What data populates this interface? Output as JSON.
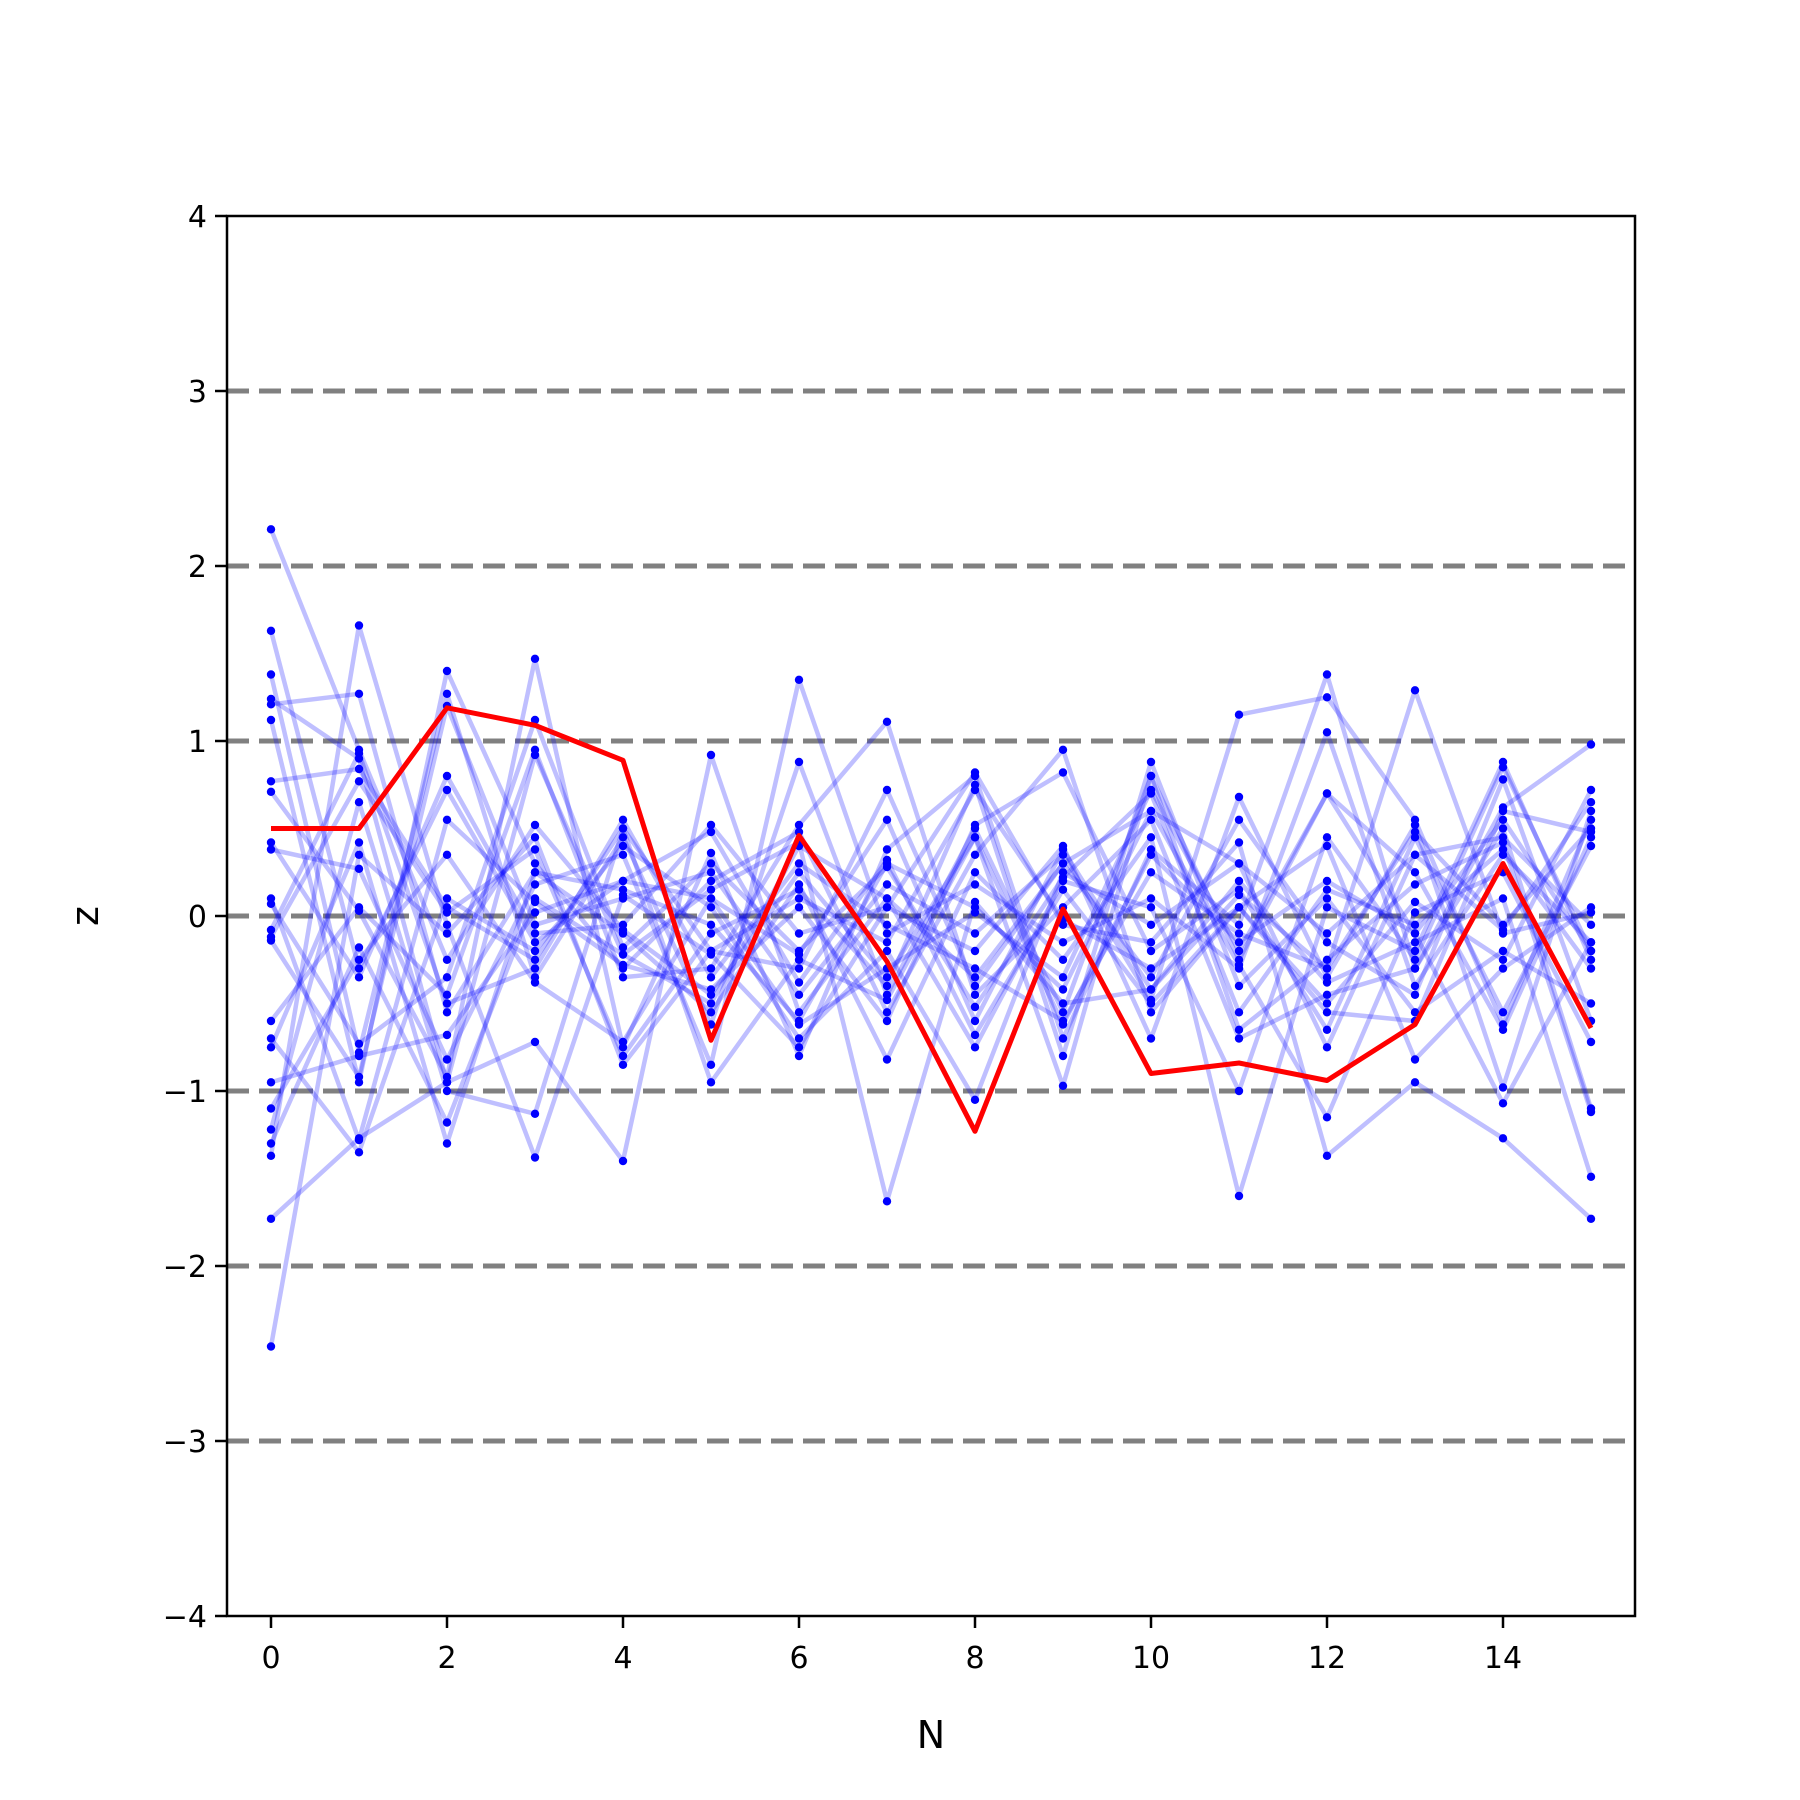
{
  "chart_data": {
    "type": "line",
    "xlabel": "N",
    "ylabel": "z",
    "xlim": [
      -0.5,
      15.5
    ],
    "ylim": [
      -4,
      4
    ],
    "x_ticks": [
      0,
      2,
      4,
      6,
      8,
      10,
      12,
      14
    ],
    "x_tick_labels": [
      "0",
      "2",
      "4",
      "6",
      "8",
      "10",
      "12",
      "14"
    ],
    "y_ticks": [
      -4,
      -3,
      -2,
      -1,
      0,
      1,
      2,
      3,
      4
    ],
    "y_tick_labels": [
      "−4",
      "−3",
      "−2",
      "−1",
      "0",
      "1",
      "2",
      "3",
      "4"
    ],
    "reference_lines": [
      -3,
      -2,
      -1,
      0,
      1,
      2,
      3
    ],
    "x": [
      0,
      1,
      2,
      3,
      4,
      5,
      6,
      7,
      8,
      9,
      10,
      11,
      12,
      13,
      14,
      15
    ],
    "highlight_series": {
      "color": "#ff0000",
      "values": [
        0.5,
        0.5,
        1.19,
        1.09,
        0.89,
        -0.71,
        0.46,
        -0.26,
        -1.23,
        0.04,
        -0.9,
        -0.84,
        -0.94,
        -0.62,
        0.3,
        -0.64
      ]
    },
    "background_series": {
      "color": "#0000ff",
      "series": [
        {
          "values": [
            2.21,
            0.95,
            -0.25,
            0.52,
            -0.08,
            -0.45,
            0.25,
            -0.35,
            0.45,
            -0.62,
            0.35,
            -0.15,
            0.2,
            -0.1,
            0.55,
            -0.2
          ]
        },
        {
          "values": [
            1.63,
            -0.3,
            0.72,
            -0.15,
            0.2,
            0.1,
            -0.22,
            0.55,
            -0.6,
            0.38,
            -0.42,
            0.12,
            -0.3,
            0.48,
            -0.05,
            0.5
          ]
        },
        {
          "values": [
            1.38,
            -0.78,
            1.27,
            -0.35,
            0.45,
            -0.62,
            0.88,
            -0.45,
            0.5,
            -0.55,
            0.8,
            -0.25,
            0.7,
            0.25,
            -0.65,
            0.45
          ]
        },
        {
          "values": [
            1.24,
            0.9,
            -0.95,
            0.92,
            -0.22,
            -0.5,
            0.4,
            0.1,
            -0.75,
            0.2,
            0.05,
            -1.0,
            0.45,
            -0.25,
            0.85,
            -0.2
          ]
        },
        {
          "values": [
            1.21,
            1.27,
            -0.55,
            0.25,
            0.15,
            -0.05,
            -0.6,
            0.3,
            0.05,
            -0.42,
            0.6,
            0.3,
            -0.1,
            0.35,
            0.45,
            -0.05
          ]
        },
        {
          "values": [
            1.12,
            -0.95,
            1.4,
            0.3,
            -0.3,
            0.2,
            0.48,
            -0.55,
            0.35,
            0.95,
            -0.55,
            0.05,
            -0.5,
            0.08,
            -0.25,
            0.72
          ]
        },
        {
          "values": [
            0.77,
            0.84,
            0.05,
            -0.25,
            0.5,
            -0.2,
            -0.3,
            0.72,
            -0.4,
            0.3,
            -0.35,
            0.55,
            -0.15,
            -0.45,
            0.78,
            -0.6
          ]
        },
        {
          "values": [
            0.71,
            0.03,
            -0.92,
            1.47,
            -0.75,
            0.36,
            -0.8,
            0.38,
            0.8,
            -0.7,
            0.38,
            -0.05,
            1.38,
            -0.3,
            0.62,
            0.98
          ]
        },
        {
          "values": [
            0.42,
            -0.35,
            0.8,
            -0.1,
            -0.05,
            0.52,
            -0.1,
            0.05,
            -0.2,
            0.4,
            -0.7,
            0.68,
            -0.35,
            0.52,
            -0.98,
            0.6
          ]
        },
        {
          "values": [
            0.38,
            0.27,
            -0.82,
            0.18,
            0.35,
            -0.85,
            1.35,
            -0.1,
            0.18,
            -0.15,
            0.1,
            -0.3,
            1.05,
            -0.4,
            0.35,
            -0.15
          ]
        },
        {
          "values": [
            0.1,
            -1.28,
            0.55,
            0.08,
            -0.28,
            -0.42,
            0.05,
            -0.6,
            0.52,
            0.82,
            -0.2,
            0.15,
            -0.65,
            0.45,
            -0.55,
            0.4
          ]
        },
        {
          "values": [
            0.07,
            -0.73,
            -0.35,
            1.12,
            -0.18,
            0.3,
            -0.2,
            0.28,
            -0.52,
            0.22,
            0.7,
            -0.55,
            0.15,
            -0.05,
            0.38,
            -0.3
          ]
        },
        {
          "values": [
            -0.08,
            0.93,
            -0.5,
            -0.3,
            0.55,
            -0.35,
            0.3,
            -0.05,
            -0.3,
            -0.6,
            0.25,
            -0.1,
            -0.3,
            1.29,
            -0.1,
            0.02
          ]
        },
        {
          "values": [
            -0.12,
            0.77,
            0.02,
            0.38,
            -0.8,
            -0.1,
            0.15,
            -0.4,
            0.75,
            -0.8,
            0.88,
            -0.4,
            0.1,
            -0.55,
            -0.2,
            -0.5
          ]
        },
        {
          "values": [
            -0.14,
            -0.92,
            1.2,
            -0.05,
            0.1,
            0.25,
            -0.45,
            0.18,
            -0.1,
            0.35,
            -0.48,
            1.15,
            1.25,
            0.55,
            -0.62,
            0.55
          ]
        },
        {
          "values": [
            -0.6,
            0.05,
            -0.45,
            0.95,
            -0.35,
            -0.3,
            0.52,
            1.11,
            -0.45,
            0.05,
            0.55,
            -0.7,
            -0.45,
            -0.3,
            0.5,
            -1.1
          ]
        },
        {
          "values": [
            -0.7,
            -1.35,
            0.1,
            -0.2,
            0.4,
            0.05,
            -0.7,
            -0.2,
            -1.05,
            0.25,
            -0.05,
            0.3,
            -0.75,
            0.35,
            -0.08,
            0.65
          ]
        },
        {
          "values": [
            -0.75,
            0.42,
            -1.3,
            0.25,
            -0.1,
            -0.55,
            0.18,
            -0.82,
            0.25,
            -0.25,
            0.45,
            -1.6,
            0.05,
            -0.2,
            0.88,
            -0.25
          ]
        },
        {
          "values": [
            -0.95,
            -0.8,
            -0.68,
            0.02,
            0.2,
            0.48,
            -0.38,
            0.32,
            -0.68,
            0.15,
            -0.5,
            0.05,
            -0.55,
            -0.6,
            0.6,
            0.48
          ]
        },
        {
          "values": [
            -1.1,
            -0.25,
            0.35,
            -0.38,
            -0.72,
            0.1,
            -0.62,
            -0.3,
            0.02,
            -0.35,
            0.72,
            -0.2,
            0.7,
            -0.1,
            -1.07,
            -0.15
          ]
        },
        {
          "values": [
            -1.22,
            0.65,
            -1.0,
            -1.13,
            0.5,
            -0.95,
            -0.25,
            -0.48,
            0.45,
            -0.97,
            0.8,
            -0.65,
            -0.25,
            0.18,
            0.42,
            -1.12
          ]
        },
        {
          "values": [
            -1.3,
            -0.18,
            -1.18,
            0.1,
            -0.22,
            0.15,
            0.42,
            -1.63,
            0.08,
            -0.5,
            -0.42,
            0.2,
            -0.38,
            -0.15,
            0.1,
            -1.49
          ]
        },
        {
          "values": [
            -1.37,
            1.66,
            -0.05,
            -1.38,
            0.12,
            -0.22,
            -0.75,
            0.05,
            0.82,
            -0.05,
            -0.15,
            0.42,
            -1.37,
            -0.95,
            -1.27,
            -1.73
          ]
        },
        {
          "values": [
            -1.73,
            -1.27,
            -0.95,
            -0.72,
            -1.4,
            0.92,
            -0.55,
            0.1,
            -0.35,
            0.3,
            0.6,
            -0.28,
            -1.15,
            0.02,
            0.25,
            -0.72
          ]
        },
        {
          "values": [
            -2.46,
            0.35,
            -0.1,
            0.45,
            -0.85,
            -0.2,
            0.1,
            -0.15,
            0.72,
            -0.02,
            -0.3,
            0.05,
            0.4,
            -0.82,
            -0.3,
            0.05
          ]
        }
      ]
    }
  }
}
